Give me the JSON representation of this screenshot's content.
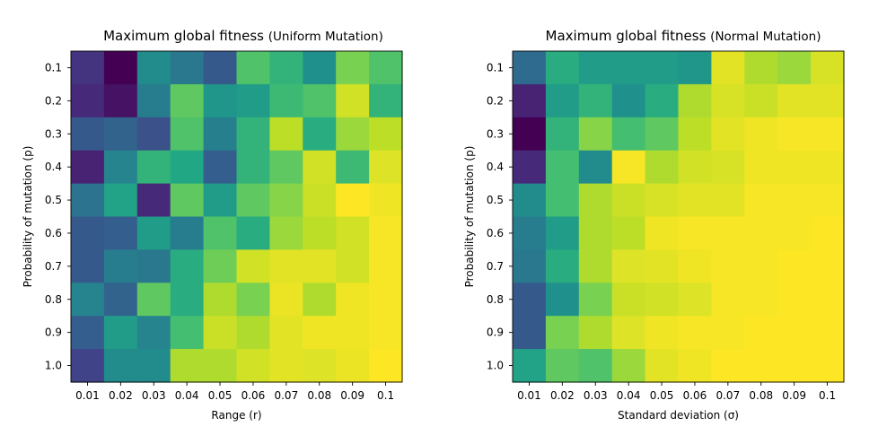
{
  "chart_data": [
    {
      "type": "heatmap",
      "title": "Maximum global fitness",
      "subtitle": "(Uniform Mutation)",
      "xlabel": "Range (r)",
      "ylabel": "Probability of mutation (p)",
      "x_ticks": [
        "0.01",
        "0.02",
        "0.03",
        "0.04",
        "0.05",
        "0.06",
        "0.07",
        "0.08",
        "0.09",
        "0.1"
      ],
      "y_ticks": [
        "0.1",
        "0.2",
        "0.3",
        "0.4",
        "0.5",
        "0.6",
        "0.7",
        "0.8",
        "0.9",
        "1.0"
      ],
      "colormap": "viridis",
      "values_normalized": [
        [
          0.15,
          0.0,
          0.48,
          0.4,
          0.28,
          0.72,
          0.65,
          0.5,
          0.8,
          0.72
        ],
        [
          0.12,
          0.05,
          0.42,
          0.75,
          0.52,
          0.55,
          0.68,
          0.72,
          0.93,
          0.65
        ],
        [
          0.28,
          0.32,
          0.25,
          0.72,
          0.43,
          0.65,
          0.9,
          0.62,
          0.85,
          0.9
        ],
        [
          0.1,
          0.45,
          0.65,
          0.6,
          0.3,
          0.65,
          0.75,
          0.93,
          0.68,
          0.95
        ],
        [
          0.38,
          0.58,
          0.12,
          0.75,
          0.55,
          0.75,
          0.82,
          0.92,
          1.0,
          0.98
        ],
        [
          0.28,
          0.3,
          0.55,
          0.42,
          0.72,
          0.62,
          0.85,
          0.9,
          0.93,
          0.99
        ],
        [
          0.28,
          0.42,
          0.4,
          0.62,
          0.78,
          0.93,
          0.96,
          0.96,
          0.93,
          0.99
        ],
        [
          0.45,
          0.32,
          0.75,
          0.62,
          0.88,
          0.8,
          0.97,
          0.88,
          0.98,
          0.99
        ],
        [
          0.3,
          0.55,
          0.45,
          0.7,
          0.92,
          0.88,
          0.96,
          0.98,
          0.98,
          0.99
        ],
        [
          0.2,
          0.48,
          0.48,
          0.88,
          0.88,
          0.93,
          0.96,
          0.95,
          0.97,
          1.0
        ]
      ]
    },
    {
      "type": "heatmap",
      "title": "Maximum global fitness",
      "subtitle": "(Normal Mutation)",
      "xlabel": "Standard deviation (σ)",
      "ylabel": "Probability of mutation (p)",
      "x_ticks": [
        "0.01",
        "0.02",
        "0.03",
        "0.04",
        "0.05",
        "0.06",
        "0.07",
        "0.08",
        "0.09",
        "0.1"
      ],
      "y_ticks": [
        "0.1",
        "0.2",
        "0.3",
        "0.4",
        "0.5",
        "0.6",
        "0.7",
        "0.8",
        "0.9",
        "1.0"
      ],
      "colormap": "viridis",
      "values_normalized": [
        [
          0.35,
          0.62,
          0.55,
          0.55,
          0.55,
          0.52,
          0.96,
          0.88,
          0.85,
          0.94
        ],
        [
          0.1,
          0.55,
          0.65,
          0.5,
          0.62,
          0.88,
          0.94,
          0.92,
          0.96,
          0.96
        ],
        [
          0.0,
          0.65,
          0.82,
          0.7,
          0.75,
          0.9,
          0.96,
          0.98,
          0.99,
          0.99
        ],
        [
          0.12,
          0.7,
          0.48,
          0.99,
          0.88,
          0.93,
          0.94,
          0.98,
          0.98,
          0.98
        ],
        [
          0.48,
          0.7,
          0.88,
          0.92,
          0.94,
          0.96,
          0.96,
          0.99,
          0.99,
          0.99
        ],
        [
          0.42,
          0.55,
          0.88,
          0.9,
          0.98,
          0.99,
          0.99,
          0.99,
          0.99,
          1.0
        ],
        [
          0.4,
          0.62,
          0.88,
          0.95,
          0.96,
          0.98,
          0.99,
          0.99,
          1.0,
          1.0
        ],
        [
          0.28,
          0.5,
          0.8,
          0.92,
          0.93,
          0.95,
          0.99,
          0.99,
          1.0,
          1.0
        ],
        [
          0.28,
          0.8,
          0.88,
          0.95,
          0.98,
          0.99,
          0.99,
          1.0,
          1.0,
          1.0
        ],
        [
          0.58,
          0.75,
          0.72,
          0.85,
          0.96,
          0.98,
          1.0,
          1.0,
          1.0,
          1.0
        ]
      ]
    }
  ]
}
